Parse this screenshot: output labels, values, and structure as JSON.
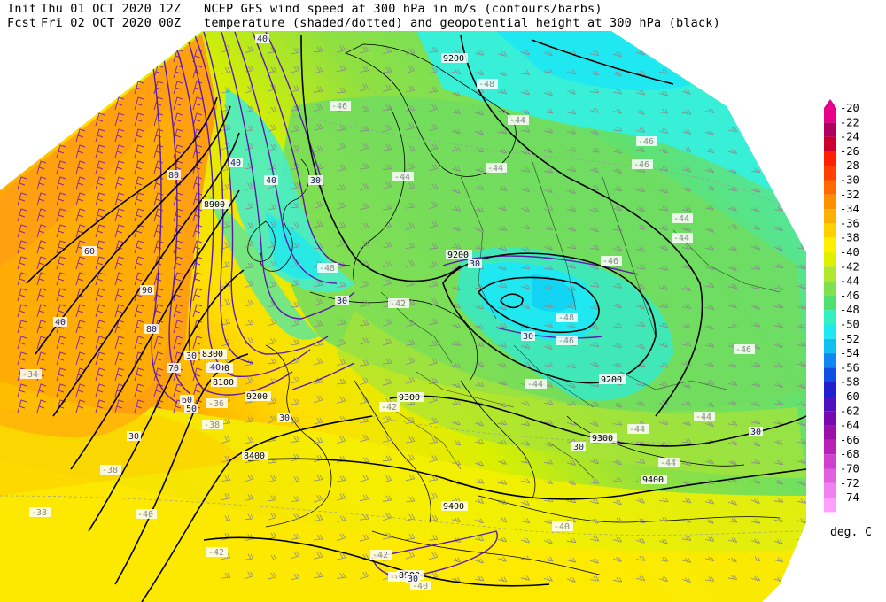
{
  "header": {
    "init_label": "Init",
    "init_time": "Thu 01 OCT 2020 12Z",
    "fcst_label": "Fcst",
    "fcst_time": "Fri 02 OCT 2020 00Z",
    "title_line1": "NCEP GFS wind speed at 300 hPa in m/s (contours/barbs)",
    "title_line2": "temperature (shaded/dotted) and geopotential height at 300 hPa (black)"
  },
  "legend": {
    "levels": [
      "-20",
      "-22",
      "-24",
      "-26",
      "-28",
      "-30",
      "-32",
      "-34",
      "-36",
      "-38",
      "-40",
      "-42",
      "-44",
      "-46",
      "-48",
      "-50",
      "-52",
      "-54",
      "-56",
      "-58",
      "-60",
      "-62",
      "-64",
      "-66",
      "-68",
      "-70",
      "-72",
      "-74"
    ],
    "colors": [
      "#e6008a",
      "#b00060",
      "#cc0030",
      "#ff2000",
      "#ff4000",
      "#ff6a00",
      "#ff9000",
      "#ffb000",
      "#ffd000",
      "#ffef00",
      "#e0f000",
      "#b0e830",
      "#80e050",
      "#50e070",
      "#30f0c0",
      "#20e8f0",
      "#10c0f0",
      "#1088f0",
      "#1050e0",
      "#2020d0",
      "#5010c0",
      "#7808b0",
      "#9a10a8",
      "#b820b8",
      "#d040d0",
      "#e060e0",
      "#f080f0",
      "#ffa0ff"
    ],
    "units": "deg. C"
  },
  "map_labels": {
    "temps": [
      "-48",
      "-46",
      "-46",
      "-44",
      "-44",
      "-46",
      "-44",
      "-44",
      "-42",
      "-48",
      "-46",
      "-48",
      "-46",
      "-44",
      "-44",
      "-44",
      "-46",
      "-42",
      "-44",
      "-38",
      "-36",
      "-34",
      "-38",
      "-38",
      "-40",
      "-40",
      "-42",
      "-42",
      "-40",
      "-40",
      "-44"
    ],
    "heights": [
      "8900",
      "9200",
      "9200",
      "9300",
      "9300",
      "9400",
      "9400",
      "8400",
      "8300",
      "8100",
      "8000",
      "9200",
      "9200",
      "8900"
    ],
    "speeds": [
      "40",
      "40",
      "40",
      "30",
      "30",
      "30",
      "30",
      "30",
      "30",
      "30",
      "30",
      "40",
      "50",
      "60",
      "60",
      "70",
      "80",
      "80",
      "90",
      "40",
      "30",
      "30"
    ]
  }
}
